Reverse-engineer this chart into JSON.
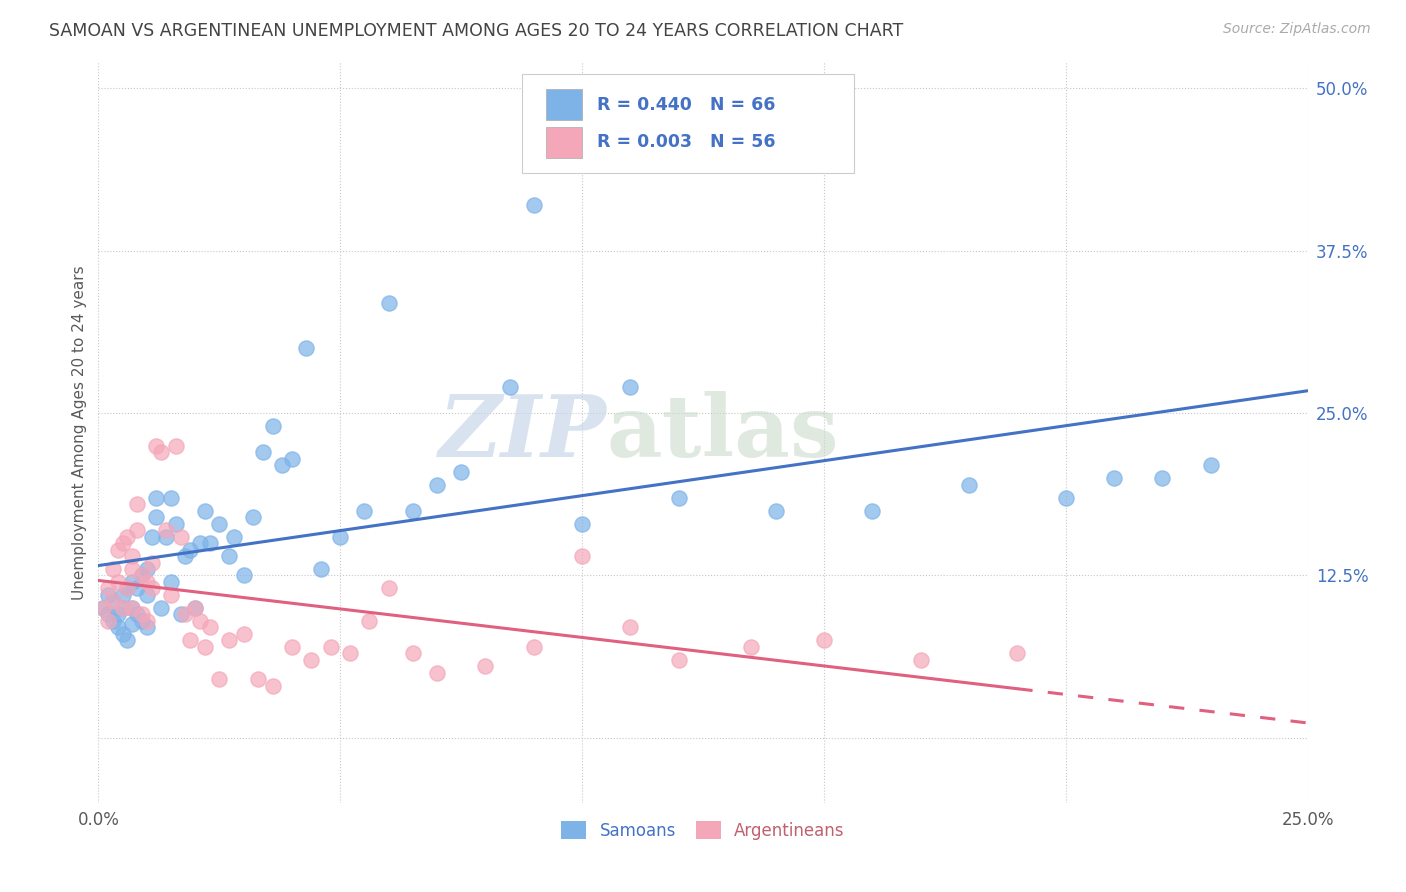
{
  "title": "SAMOAN VS ARGENTINEAN UNEMPLOYMENT AMONG AGES 20 TO 24 YEARS CORRELATION CHART",
  "source": "Source: ZipAtlas.com",
  "ylabel": "Unemployment Among Ages 20 to 24 years",
  "xlim": [
    0.0,
    0.25
  ],
  "ylim": [
    -0.05,
    0.52
  ],
  "x_ticks": [
    0.0,
    0.05,
    0.1,
    0.15,
    0.2,
    0.25
  ],
  "x_tick_labels": [
    "0.0%",
    "",
    "",
    "",
    "",
    "25.0%"
  ],
  "y_ticks": [
    0.0,
    0.125,
    0.25,
    0.375,
    0.5
  ],
  "y_tick_labels": [
    "",
    "12.5%",
    "25.0%",
    "37.5%",
    "50.0%"
  ],
  "legend_labels": [
    "Samoans",
    "Argentineans"
  ],
  "samoan_color": "#7eb3e8",
  "argentinean_color": "#f4a7b9",
  "samoan_line_color": "#4472c4",
  "argentinean_line_color": "#e06080",
  "watermark_zip": "ZIP",
  "watermark_atlas": "atlas",
  "background_color": "#ffffff",
  "grid_color": "#c8c8c8",
  "title_color": "#444444",
  "axis_color": "#5a5a5a",
  "samoan_x": [
    0.001,
    0.002,
    0.002,
    0.003,
    0.003,
    0.004,
    0.004,
    0.005,
    0.005,
    0.005,
    0.006,
    0.006,
    0.007,
    0.007,
    0.007,
    0.008,
    0.008,
    0.009,
    0.009,
    0.01,
    0.01,
    0.01,
    0.011,
    0.012,
    0.012,
    0.013,
    0.014,
    0.015,
    0.015,
    0.016,
    0.017,
    0.018,
    0.019,
    0.02,
    0.021,
    0.022,
    0.023,
    0.025,
    0.027,
    0.028,
    0.03,
    0.032,
    0.034,
    0.036,
    0.038,
    0.04,
    0.043,
    0.046,
    0.05,
    0.055,
    0.06,
    0.065,
    0.07,
    0.075,
    0.085,
    0.09,
    0.1,
    0.11,
    0.12,
    0.14,
    0.16,
    0.18,
    0.2,
    0.21,
    0.22,
    0.23
  ],
  "samoan_y": [
    0.1,
    0.095,
    0.11,
    0.09,
    0.105,
    0.085,
    0.095,
    0.08,
    0.1,
    0.11,
    0.075,
    0.115,
    0.088,
    0.1,
    0.12,
    0.095,
    0.115,
    0.09,
    0.125,
    0.085,
    0.11,
    0.13,
    0.155,
    0.17,
    0.185,
    0.1,
    0.155,
    0.185,
    0.12,
    0.165,
    0.095,
    0.14,
    0.145,
    0.1,
    0.15,
    0.175,
    0.15,
    0.165,
    0.14,
    0.155,
    0.125,
    0.17,
    0.22,
    0.24,
    0.21,
    0.215,
    0.3,
    0.13,
    0.155,
    0.175,
    0.335,
    0.175,
    0.195,
    0.205,
    0.27,
    0.41,
    0.165,
    0.27,
    0.185,
    0.175,
    0.175,
    0.195,
    0.185,
    0.2,
    0.2,
    0.21
  ],
  "argentinean_x": [
    0.001,
    0.002,
    0.002,
    0.003,
    0.003,
    0.004,
    0.004,
    0.005,
    0.005,
    0.006,
    0.006,
    0.007,
    0.007,
    0.007,
    0.008,
    0.008,
    0.009,
    0.009,
    0.01,
    0.01,
    0.011,
    0.011,
    0.012,
    0.013,
    0.014,
    0.015,
    0.016,
    0.017,
    0.018,
    0.019,
    0.02,
    0.021,
    0.022,
    0.023,
    0.025,
    0.027,
    0.03,
    0.033,
    0.036,
    0.04,
    0.044,
    0.048,
    0.052,
    0.056,
    0.06,
    0.065,
    0.07,
    0.08,
    0.09,
    0.1,
    0.11,
    0.12,
    0.135,
    0.15,
    0.17,
    0.19
  ],
  "argentinean_y": [
    0.1,
    0.09,
    0.115,
    0.105,
    0.13,
    0.12,
    0.145,
    0.1,
    0.15,
    0.115,
    0.155,
    0.1,
    0.13,
    0.14,
    0.16,
    0.18,
    0.095,
    0.125,
    0.09,
    0.12,
    0.115,
    0.135,
    0.225,
    0.22,
    0.16,
    0.11,
    0.225,
    0.155,
    0.095,
    0.075,
    0.1,
    0.09,
    0.07,
    0.085,
    0.045,
    0.075,
    0.08,
    0.045,
    0.04,
    0.07,
    0.06,
    0.07,
    0.065,
    0.09,
    0.115,
    0.065,
    0.05,
    0.055,
    0.07,
    0.14,
    0.085,
    0.06,
    0.07,
    0.075,
    0.06,
    0.065
  ]
}
